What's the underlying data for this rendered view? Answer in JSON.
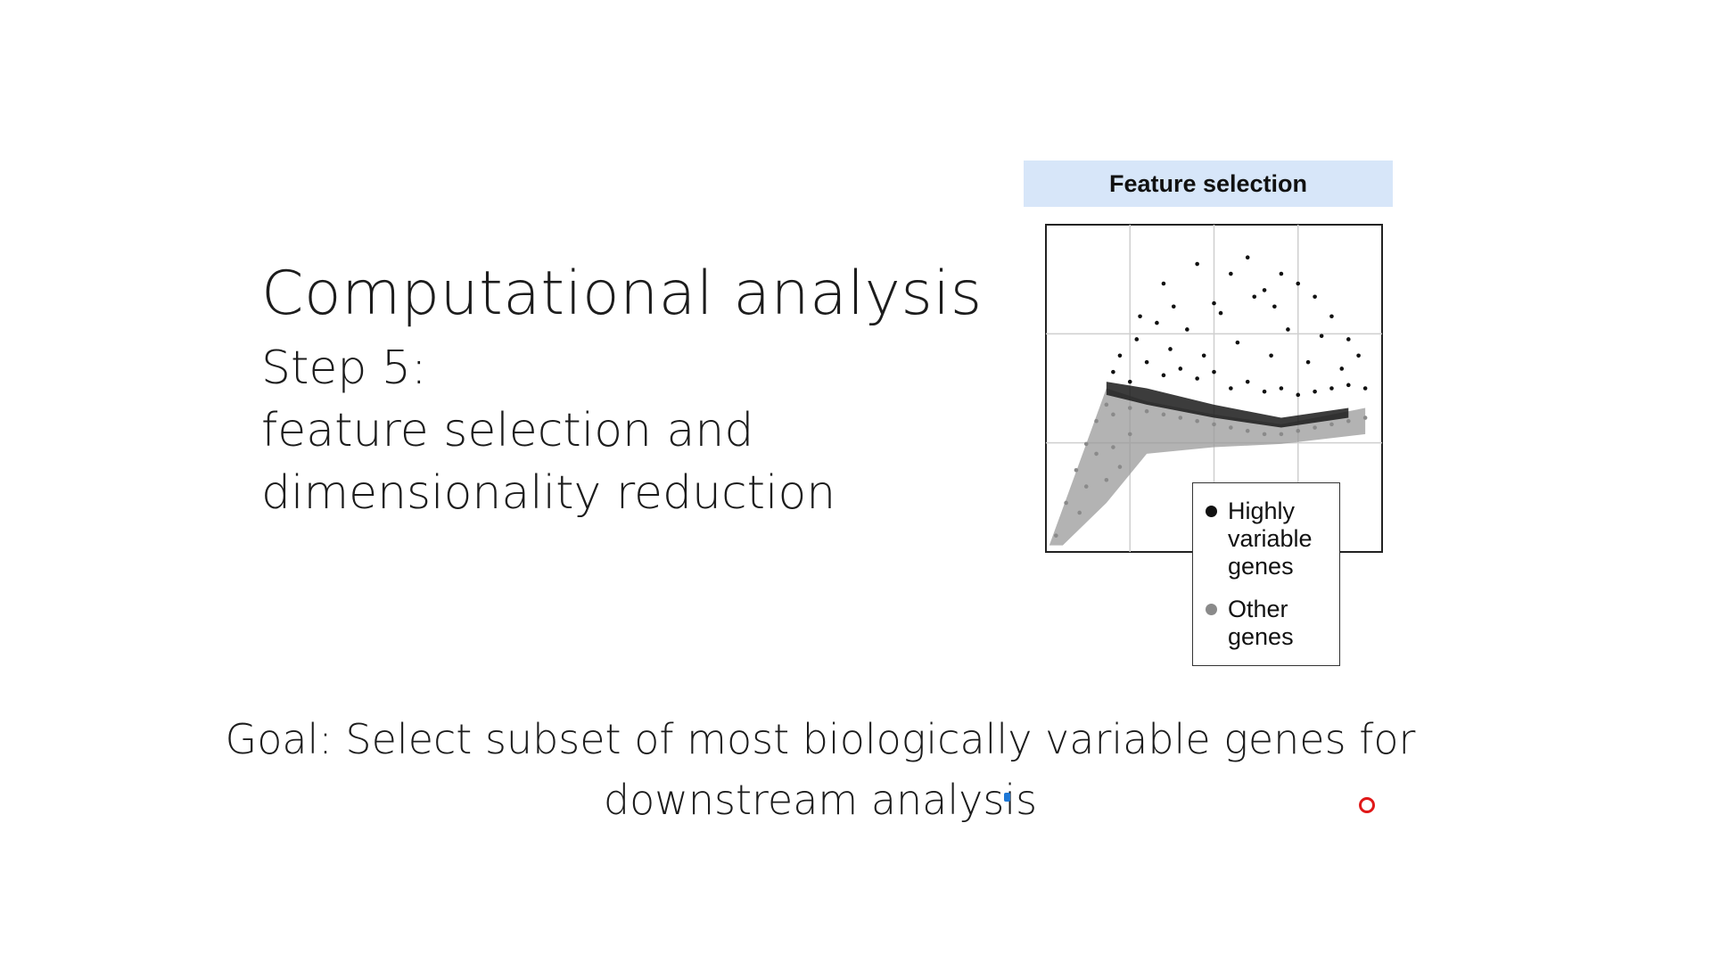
{
  "slide": {
    "title": "Computational analysis",
    "subtitle_lines": [
      "Step 5:",
      "feature selection and",
      "dimensionality reduction"
    ],
    "goal_lines": [
      "Goal: Select subset of most biologically variable genes for",
      "downstream analysis"
    ]
  },
  "figure": {
    "header": "Feature selection",
    "legend": {
      "highly_variable": [
        "Highly",
        "variable",
        "genes"
      ],
      "other": [
        "Other",
        "genes"
      ]
    },
    "colors": {
      "highly_variable": "#111111",
      "other": "#8a8a8a",
      "header_bg": "#d7e6f9"
    }
  },
  "chart_data": {
    "type": "scatter",
    "title": "Feature selection",
    "xlabel": "",
    "ylabel": "",
    "grid": true,
    "legend_position": "bottom-right",
    "xlim": [
      0,
      1
    ],
    "ylim": [
      0,
      1
    ],
    "series": [
      {
        "name": "Highly variable genes",
        "color": "#111111",
        "points": [
          [
            0.2,
            0.55
          ],
          [
            0.22,
            0.6
          ],
          [
            0.25,
            0.52
          ],
          [
            0.27,
            0.65
          ],
          [
            0.3,
            0.58
          ],
          [
            0.33,
            0.7
          ],
          [
            0.35,
            0.54
          ],
          [
            0.37,
            0.62
          ],
          [
            0.4,
            0.56
          ],
          [
            0.42,
            0.68
          ],
          [
            0.45,
            0.53
          ],
          [
            0.47,
            0.6
          ],
          [
            0.5,
            0.55
          ],
          [
            0.52,
            0.73
          ],
          [
            0.55,
            0.5
          ],
          [
            0.57,
            0.64
          ],
          [
            0.6,
            0.52
          ],
          [
            0.62,
            0.78
          ],
          [
            0.65,
            0.49
          ],
          [
            0.67,
            0.6
          ],
          [
            0.7,
            0.5
          ],
          [
            0.72,
            0.68
          ],
          [
            0.75,
            0.48
          ],
          [
            0.78,
            0.58
          ],
          [
            0.8,
            0.49
          ],
          [
            0.82,
            0.66
          ],
          [
            0.85,
            0.5
          ],
          [
            0.88,
            0.56
          ],
          [
            0.9,
            0.51
          ],
          [
            0.93,
            0.6
          ],
          [
            0.95,
            0.5
          ],
          [
            0.35,
            0.82
          ],
          [
            0.38,
            0.75
          ],
          [
            0.55,
            0.85
          ],
          [
            0.6,
            0.9
          ],
          [
            0.65,
            0.8
          ],
          [
            0.7,
            0.85
          ],
          [
            0.75,
            0.82
          ],
          [
            0.8,
            0.78
          ],
          [
            0.85,
            0.72
          ],
          [
            0.9,
            0.65
          ],
          [
            0.68,
            0.75
          ],
          [
            0.5,
            0.76
          ],
          [
            0.45,
            0.88
          ],
          [
            0.28,
            0.72
          ]
        ]
      },
      {
        "name": "Other genes",
        "color": "#8a8a8a",
        "points": [
          [
            0.03,
            0.05
          ],
          [
            0.06,
            0.15
          ],
          [
            0.09,
            0.25
          ],
          [
            0.12,
            0.33
          ],
          [
            0.15,
            0.4
          ],
          [
            0.18,
            0.45
          ],
          [
            0.2,
            0.42
          ],
          [
            0.25,
            0.44
          ],
          [
            0.3,
            0.43
          ],
          [
            0.35,
            0.42
          ],
          [
            0.4,
            0.41
          ],
          [
            0.45,
            0.4
          ],
          [
            0.5,
            0.39
          ],
          [
            0.55,
            0.38
          ],
          [
            0.6,
            0.37
          ],
          [
            0.65,
            0.36
          ],
          [
            0.7,
            0.36
          ],
          [
            0.75,
            0.37
          ],
          [
            0.8,
            0.38
          ],
          [
            0.85,
            0.39
          ],
          [
            0.9,
            0.4
          ],
          [
            0.95,
            0.41
          ],
          [
            0.15,
            0.3
          ],
          [
            0.2,
            0.32
          ],
          [
            0.25,
            0.36
          ],
          [
            0.18,
            0.22
          ],
          [
            0.22,
            0.26
          ],
          [
            0.12,
            0.2
          ],
          [
            0.1,
            0.12
          ]
        ]
      }
    ]
  }
}
